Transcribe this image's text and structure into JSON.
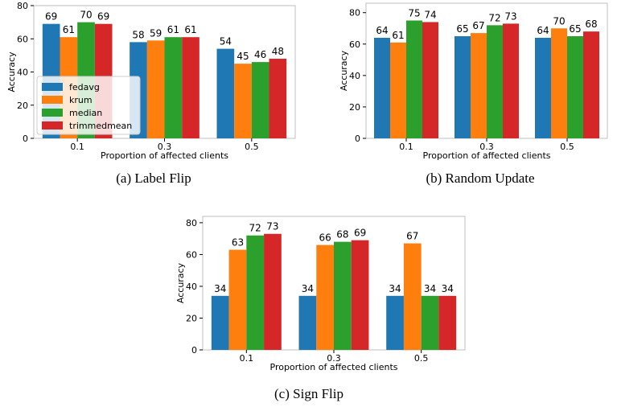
{
  "colors": {
    "fedavg": "#1f77b4",
    "krum": "#ff7f0e",
    "median": "#2ca02c",
    "trimmedmean": "#d62728"
  },
  "chart_data": [
    {
      "type": "bar",
      "id": "a",
      "caption": "(a) Label Flip",
      "categories": [
        "0.1",
        "0.3",
        "0.5"
      ],
      "xlabel": "Proportion of affected clients",
      "ylabel": "Accuracy",
      "ylim": [
        0,
        80
      ],
      "yticks": [
        0,
        20,
        40,
        60,
        80
      ],
      "legend": "lower-left",
      "series": [
        {
          "name": "fedavg",
          "values": [
            69,
            58,
            54
          ]
        },
        {
          "name": "krum",
          "values": [
            61,
            59,
            45
          ]
        },
        {
          "name": "median",
          "values": [
            70,
            61,
            46
          ]
        },
        {
          "name": "trimmedmean",
          "values": [
            69,
            61,
            48
          ]
        }
      ]
    },
    {
      "type": "bar",
      "id": "b",
      "caption": "(b) Random Update",
      "categories": [
        "0.1",
        "0.3",
        "0.5"
      ],
      "xlabel": "Proportion of affected clients",
      "ylabel": "Accuracy",
      "ylim": [
        0,
        86
      ],
      "yticks": [
        0,
        20,
        40,
        60,
        80
      ],
      "series": [
        {
          "name": "fedavg",
          "values": [
            64,
            65,
            64
          ]
        },
        {
          "name": "krum",
          "values": [
            61,
            67,
            70
          ]
        },
        {
          "name": "median",
          "values": [
            75,
            72,
            65
          ]
        },
        {
          "name": "trimmedmean",
          "values": [
            74,
            73,
            68
          ]
        }
      ]
    },
    {
      "type": "bar",
      "id": "c",
      "caption": "(c) Sign Flip",
      "categories": [
        "0.1",
        "0.3",
        "0.5"
      ],
      "xlabel": "Proportion of affected clients",
      "ylabel": "Accuracy",
      "ylim": [
        0,
        84
      ],
      "yticks": [
        0,
        20,
        40,
        60,
        80
      ],
      "series": [
        {
          "name": "fedavg",
          "values": [
            34,
            34,
            34
          ]
        },
        {
          "name": "krum",
          "values": [
            63,
            66,
            67
          ]
        },
        {
          "name": "median",
          "values": [
            72,
            68,
            34
          ]
        },
        {
          "name": "trimmedmean",
          "values": [
            73,
            69,
            34
          ]
        }
      ]
    }
  ]
}
